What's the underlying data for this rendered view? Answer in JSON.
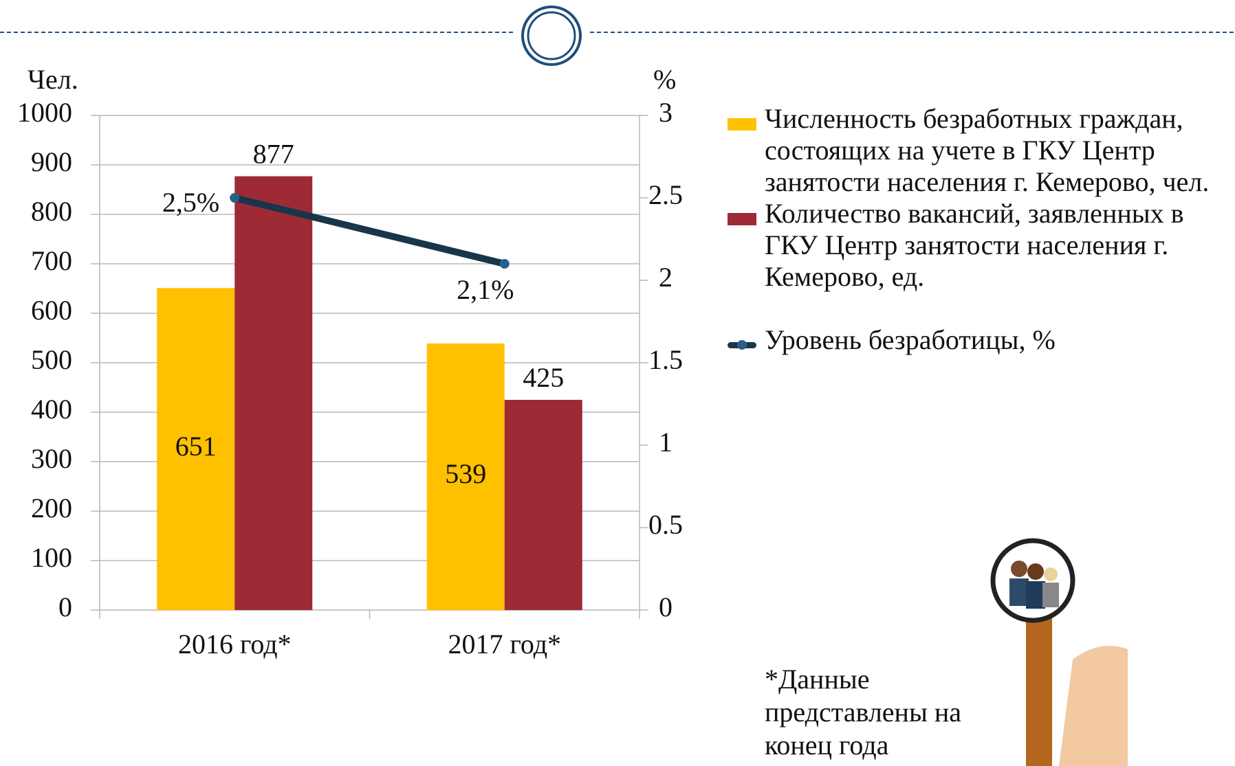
{
  "chart_data": {
    "type": "bar-line",
    "y_axis_label": "Чел.",
    "y2_axis_label": "%",
    "categories": [
      "2016 год*",
      "2017 год*"
    ],
    "series": [
      {
        "name": "Численность безработных граждан, состоящих на учете в ГКУ Центр занятости населения г. Кемерово, чел.",
        "color": "#FFC000",
        "type": "bar",
        "values": [
          651,
          539
        ]
      },
      {
        "name": "Количество вакансий, заявленных в ГКУ Центр занятости населения г. Кемерово, ед.",
        "color": "#9E2A36",
        "type": "bar",
        "values": [
          877,
          425
        ]
      },
      {
        "name": "Уровень безработицы, %",
        "color": "#17364A",
        "type": "line",
        "axis": "y2",
        "values": [
          2.5,
          2.1
        ],
        "value_labels": [
          "2,5%",
          "2,1%"
        ]
      }
    ],
    "ylim": [
      0,
      1000
    ],
    "yticks": [
      0,
      100,
      200,
      300,
      400,
      500,
      600,
      700,
      800,
      900,
      1000
    ],
    "y2lim": [
      0,
      3
    ],
    "y2ticks": [
      0,
      0.5,
      1,
      1.5,
      2,
      2.5,
      3
    ],
    "grid": true,
    "annotation": "*Данные представлены на конец года"
  }
}
